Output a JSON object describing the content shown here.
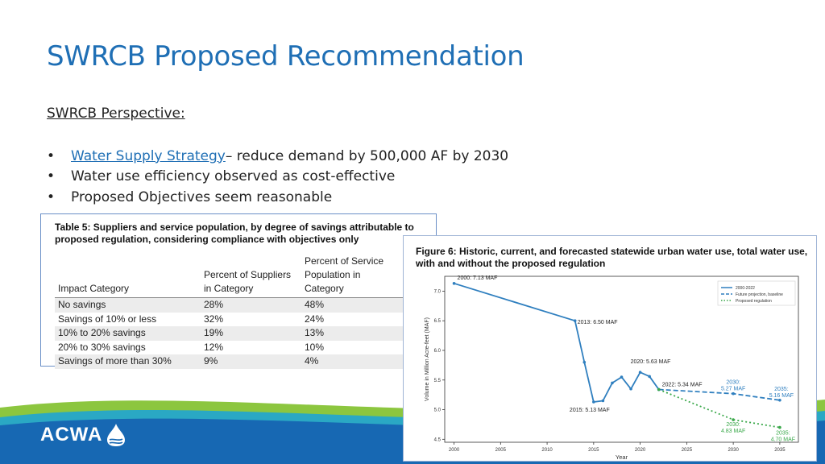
{
  "slide": {
    "title": "SWRCB Proposed Recommendation",
    "subheading": "SWRCB Perspective:",
    "bullets": [
      {
        "link": "Water Supply Strategy",
        "text": "– reduce demand by 500,000 AF by 2030"
      },
      {
        "link": "",
        "text": "Water use efficiency observed as cost-effective"
      },
      {
        "link": "",
        "text": "Proposed Objectives seem reasonable"
      }
    ],
    "logo_text": "ACWA"
  },
  "table": {
    "caption": "Table 5: Suppliers and service population, by degree of savings attributable to proposed regulation, considering compliance with objectives only",
    "headers": [
      "Impact Category",
      "Percent of Suppliers in Category",
      "Percent of Service Population in Category"
    ],
    "rows": [
      [
        "No savings",
        "28%",
        "48%"
      ],
      [
        "Savings of 10% or less",
        "32%",
        "24%"
      ],
      [
        "10% to 20% savings",
        "19%",
        "13%"
      ],
      [
        "20% to 30% savings",
        "12%",
        "10%"
      ],
      [
        "Savings of more than 30%",
        "9%",
        "4%"
      ]
    ]
  },
  "colors": {
    "title_blue": "#1f6fb5",
    "band_dark": "#1768b3",
    "band_green": "#8cc63f",
    "series_historic": "#2f7fbf",
    "series_green": "#3aa84a"
  },
  "chart_data": {
    "type": "line",
    "title": "Figure 6: Historic, current, and forecasted statewide urban water use, total water use, with and without the proposed regulation",
    "xlabel": "Year",
    "ylabel": "Volume in Million Acre-feet (MAF)",
    "xlim": [
      1999,
      2037
    ],
    "ylim": [
      4.45,
      7.25
    ],
    "xticks": [
      2000,
      2005,
      2010,
      2015,
      2020,
      2025,
      2030,
      2035
    ],
    "yticks": [
      4.5,
      5.0,
      5.5,
      6.0,
      6.5,
      7.0
    ],
    "legend_position": "top-right",
    "series": [
      {
        "name": "2000-2022",
        "style": "solid",
        "color": "#2f7fbf",
        "points": [
          [
            2000,
            7.13
          ],
          [
            2013,
            6.5
          ],
          [
            2014,
            5.8
          ],
          [
            2015,
            5.13
          ],
          [
            2016,
            5.15
          ],
          [
            2017,
            5.45
          ],
          [
            2018,
            5.55
          ],
          [
            2019,
            5.35
          ],
          [
            2020,
            5.63
          ],
          [
            2021,
            5.56
          ],
          [
            2022,
            5.34
          ]
        ]
      },
      {
        "name": "Future projection, baseline",
        "style": "dashed",
        "color": "#2f7fbf",
        "points": [
          [
            2022,
            5.34
          ],
          [
            2030,
            5.27
          ],
          [
            2035,
            5.16
          ]
        ]
      },
      {
        "name": "Proposed regulation",
        "style": "dotted",
        "color": "#3aa84a",
        "points": [
          [
            2022,
            5.34
          ],
          [
            2030,
            4.83
          ],
          [
            2035,
            4.7
          ]
        ]
      }
    ],
    "annotations": [
      {
        "x": 2000,
        "y": 7.13,
        "text": "2000: 7.13 MAF",
        "color": "#222"
      },
      {
        "x": 2013,
        "y": 6.5,
        "text": "2013: 6.50 MAF",
        "color": "#222"
      },
      {
        "x": 2015,
        "y": 5.13,
        "text": "2015: 5.13 MAF",
        "color": "#222"
      },
      {
        "x": 2020,
        "y": 5.63,
        "text": "2020: 5.63 MAF",
        "color": "#222"
      },
      {
        "x": 2022,
        "y": 5.34,
        "text": "2022: 5.34 MAF",
        "color": "#222"
      },
      {
        "x": 2030,
        "y": 5.27,
        "text": "2030:",
        "text2": "5.27 MAF",
        "color": "#2f7fbf"
      },
      {
        "x": 2035,
        "y": 5.16,
        "text": "2035:",
        "text2": "5.16 MAF",
        "color": "#2f7fbf"
      },
      {
        "x": 2030,
        "y": 4.83,
        "text": "2030:",
        "text2": "4.83 MAF",
        "color": "#3aa84a"
      },
      {
        "x": 2035,
        "y": 4.7,
        "text": "2035:",
        "text2": "4.70 MAF",
        "color": "#3aa84a"
      }
    ]
  }
}
